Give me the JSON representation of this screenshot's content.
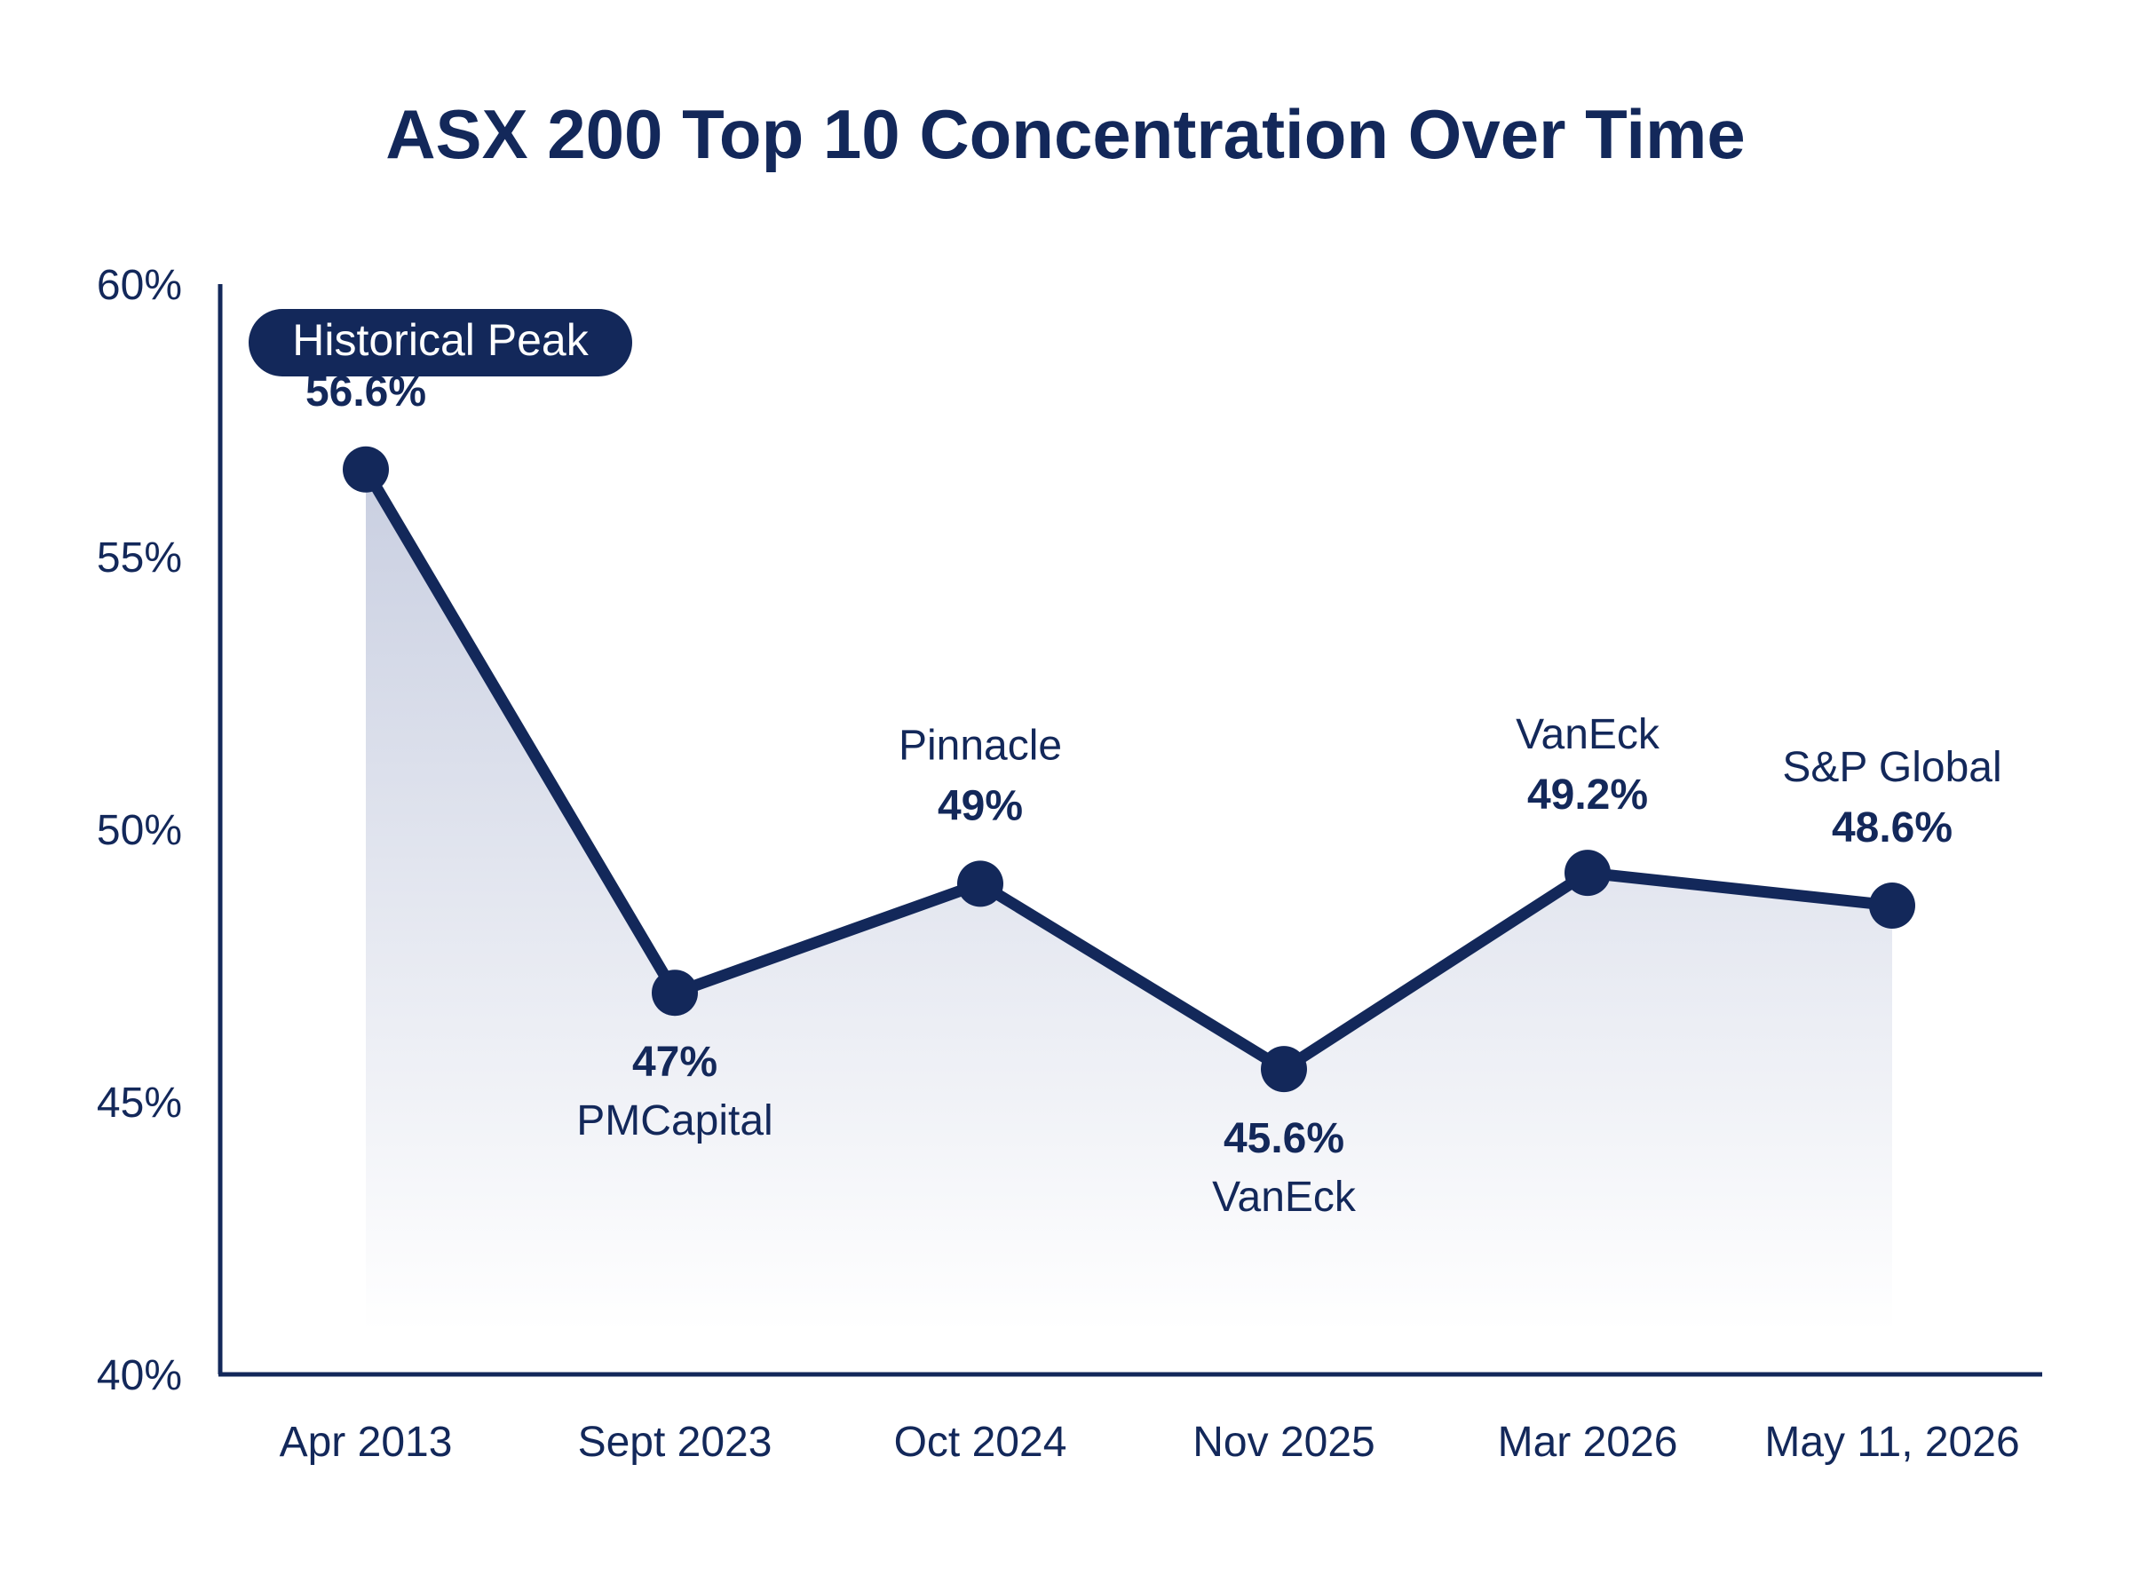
{
  "colors": {
    "primary": "#13285a",
    "axis": "#13285a",
    "area_top": "#c9cfe1",
    "area_bottom": "#ffffff",
    "background": "#ffffff"
  },
  "chart_data": {
    "type": "line",
    "title": "ASX 200 Top 10 Concentration Over Time",
    "xlabel": "",
    "ylabel": "",
    "ylim": [
      40,
      60
    ],
    "y_ticks": [
      40,
      45,
      50,
      55,
      60
    ],
    "y_tick_labels": [
      "40%",
      "45%",
      "50%",
      "55%",
      "60%"
    ],
    "categories": [
      "Apr 2013",
      "Sept 2023",
      "Oct 2024",
      "Nov 2025",
      "Mar 2026",
      "May 11, 2026"
    ],
    "values": [
      56.6,
      47,
      49,
      45.6,
      49.2,
      48.6
    ],
    "value_labels": [
      "56.6%",
      "47%",
      "49%",
      "45.6%",
      "49.2%",
      "48.6%"
    ],
    "source_labels": [
      "",
      "PMCapital",
      "Pinnacle",
      "VanEck",
      "VanEck",
      "S&P Global"
    ],
    "label_positions": [
      "above",
      "below",
      "above",
      "below",
      "above",
      "above"
    ],
    "annotation": {
      "text": "Historical Peak",
      "point_index": 0,
      "style": "badge"
    },
    "area_fill": true,
    "grid": false,
    "legend": "none"
  }
}
